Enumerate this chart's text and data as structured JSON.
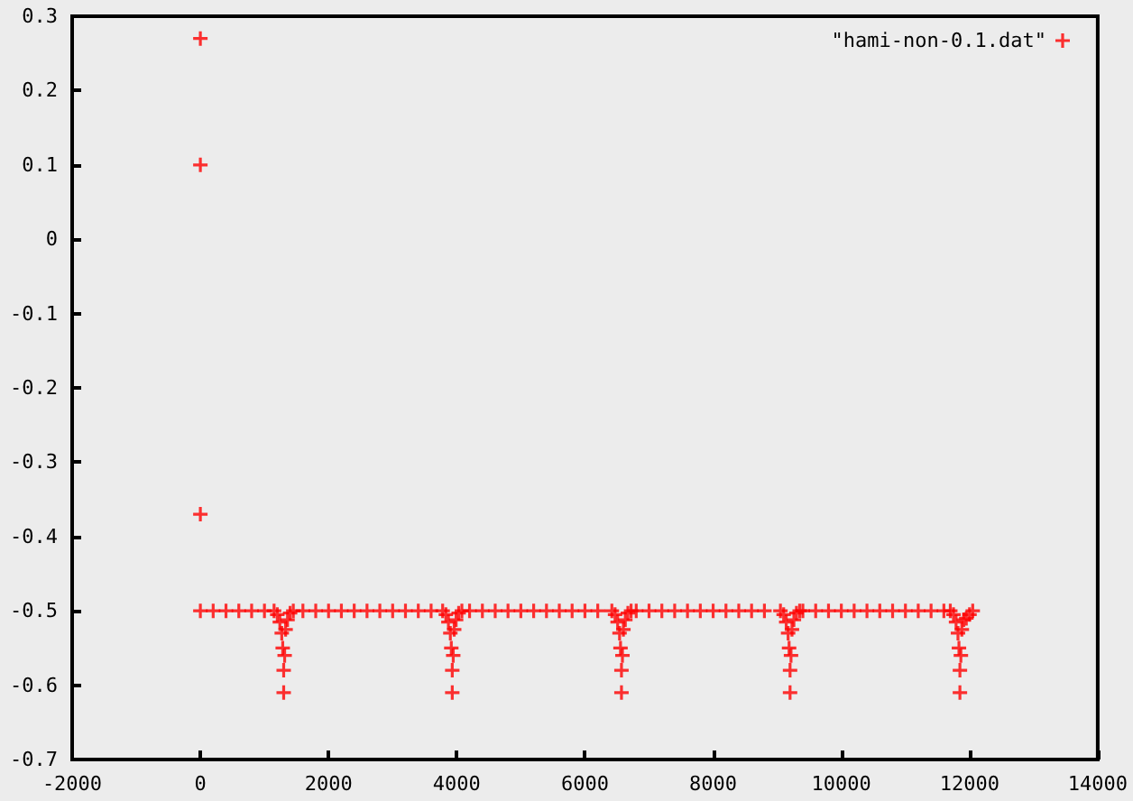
{
  "chart_data": {
    "type": "scatter",
    "marker": "cross",
    "legend": "top right",
    "grid": false,
    "xlim": [
      -2000,
      14000
    ],
    "xticks": [
      -2000,
      0,
      2000,
      4000,
      6000,
      8000,
      10000,
      12000,
      14000
    ],
    "ylim": [
      -0.7,
      0.3
    ],
    "yticks": [
      -0.7,
      -0.6,
      -0.5,
      -0.4,
      -0.3,
      -0.2,
      -0.1,
      0,
      0.1,
      0.2,
      0.3
    ],
    "series": [
      {
        "name": "\"hami-non-0.1.dat\"",
        "color": "#ff0000",
        "x": [
          0,
          0,
          0,
          0,
          200,
          400,
          600,
          800,
          1000,
          1150,
          1200,
          1240,
          1270,
          1285,
          1300,
          1300,
          1315,
          1330,
          1360,
          1400,
          1450,
          1600,
          1800,
          2000,
          2200,
          2400,
          2600,
          2800,
          3000,
          3200,
          3400,
          3600,
          3780,
          3830,
          3870,
          3900,
          3915,
          3930,
          3930,
          3945,
          3960,
          3990,
          4030,
          4080,
          4200,
          4400,
          4600,
          4800,
          5000,
          5200,
          5400,
          5600,
          5800,
          6000,
          6200,
          6420,
          6470,
          6510,
          6540,
          6555,
          6570,
          6570,
          6585,
          6600,
          6630,
          6670,
          6720,
          6800,
          7000,
          7200,
          7400,
          7600,
          7800,
          8000,
          8200,
          8400,
          8600,
          8800,
          9050,
          9100,
          9140,
          9170,
          9185,
          9200,
          9200,
          9215,
          9230,
          9260,
          9300,
          9350,
          9400,
          9600,
          9800,
          10000,
          10200,
          10400,
          10600,
          10800,
          11000,
          11200,
          11400,
          11600,
          11700,
          11750,
          11790,
          11820,
          11835,
          11850,
          11850,
          11865,
          11880,
          11910,
          11950,
          12000,
          12050
        ],
        "values": [
          0.27,
          0.1,
          -0.37,
          -0.5,
          -0.5,
          -0.5,
          -0.5,
          -0.5,
          -0.5,
          -0.5,
          -0.505,
          -0.515,
          -0.53,
          -0.55,
          -0.58,
          -0.61,
          -0.56,
          -0.525,
          -0.512,
          -0.503,
          -0.5,
          -0.5,
          -0.5,
          -0.5,
          -0.5,
          -0.5,
          -0.5,
          -0.5,
          -0.5,
          -0.5,
          -0.5,
          -0.5,
          -0.5,
          -0.505,
          -0.515,
          -0.53,
          -0.55,
          -0.58,
          -0.61,
          -0.56,
          -0.525,
          -0.512,
          -0.503,
          -0.5,
          -0.5,
          -0.5,
          -0.5,
          -0.5,
          -0.5,
          -0.5,
          -0.5,
          -0.5,
          -0.5,
          -0.5,
          -0.5,
          -0.5,
          -0.505,
          -0.515,
          -0.53,
          -0.55,
          -0.58,
          -0.61,
          -0.56,
          -0.525,
          -0.512,
          -0.503,
          -0.5,
          -0.5,
          -0.5,
          -0.5,
          -0.5,
          -0.5,
          -0.5,
          -0.5,
          -0.5,
          -0.5,
          -0.5,
          -0.5,
          -0.5,
          -0.505,
          -0.515,
          -0.53,
          -0.55,
          -0.58,
          -0.61,
          -0.56,
          -0.525,
          -0.512,
          -0.503,
          -0.5,
          -0.5,
          -0.5,
          -0.5,
          -0.5,
          -0.5,
          -0.5,
          -0.5,
          -0.5,
          -0.5,
          -0.5,
          -0.5,
          -0.5,
          -0.5,
          -0.505,
          -0.515,
          -0.53,
          -0.55,
          -0.58,
          -0.61,
          -0.56,
          -0.525,
          -0.512,
          -0.51,
          -0.505,
          -0.5
        ]
      }
    ]
  }
}
